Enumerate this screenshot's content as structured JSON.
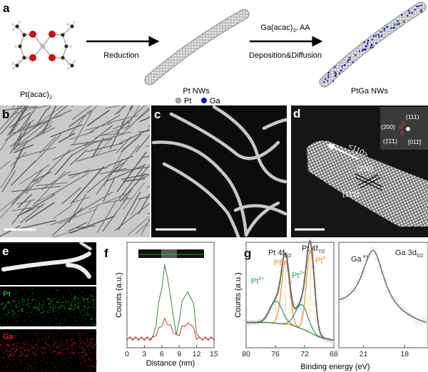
{
  "panel_labels": {
    "a": "a",
    "b": "b",
    "c": "c",
    "d": "d",
    "e": "e",
    "f": "f",
    "g": "g"
  },
  "scheme": {
    "precursor_label": "Pt(acac)",
    "precursor_sub": "2",
    "step1_label": "Reduction",
    "intermediate_label": "Pt NWs",
    "step2_top_label": "Ga(acac)",
    "step2_top_sub": "3",
    "step2_top_suffix": ", AA",
    "step2_bottom_label": "Deposition&Diffusion",
    "product_label": "PtGa NWs",
    "legend": [
      {
        "label": "Pt",
        "color": "#a8a8a8"
      },
      {
        "label": "Ga",
        "color": "#1010c8"
      }
    ]
  },
  "panel_d": {
    "direction_label": "<110>",
    "plane1_label": "(200)",
    "plane2_label": "(1̄1̄1)",
    "fft_labels": {
      "a": "(111)",
      "b": "(200)",
      "c": "(1̄1̄1)",
      "zone": "[011̄]"
    }
  },
  "panel_e": {
    "pt_label": "Pt",
    "ga_label": "Ga",
    "pt_color": "#2aa02a",
    "ga_color": "#e02020"
  },
  "chart_data": [
    {
      "id": "f",
      "type": "line",
      "xlabel": "Distance (nm)",
      "ylabel": "Counts (a.u.)",
      "xlim": [
        0,
        15
      ],
      "ylim": [
        -0.05,
        1.1
      ],
      "xticks": [
        0,
        3,
        6,
        9,
        12,
        15
      ],
      "x": [
        0,
        0.5,
        1,
        1.5,
        2,
        2.5,
        3,
        3.5,
        4,
        4.5,
        5,
        5.5,
        6,
        6.5,
        7,
        7.5,
        8,
        8.5,
        9,
        9.5,
        10,
        10.5,
        11,
        11.5,
        12,
        12.5,
        13,
        13.5,
        14,
        14.5,
        15
      ],
      "series": [
        {
          "color": "#3a8a3a",
          "values": [
            0.05,
            0.05,
            0.06,
            0.05,
            0.05,
            0.05,
            0.05,
            0.05,
            0.05,
            0.07,
            0.2,
            0.45,
            0.6,
            0.85,
            0.72,
            0.5,
            0.3,
            0.08,
            0.25,
            0.45,
            0.52,
            0.55,
            0.5,
            0.42,
            0.12,
            0.05,
            0.05,
            0.05,
            0.05,
            0.05,
            0.05
          ]
        },
        {
          "color": "#e03030",
          "values": [
            0.05,
            0.05,
            0.05,
            0.05,
            0.05,
            0.05,
            0.05,
            0.05,
            0.05,
            0.05,
            0.1,
            0.15,
            0.2,
            0.25,
            0.22,
            0.18,
            0.13,
            0.08,
            0.1,
            0.17,
            0.2,
            0.2,
            0.22,
            0.15,
            0.06,
            0.05,
            0.05,
            0.05,
            0.05,
            0.05,
            0.05
          ]
        }
      ]
    },
    {
      "id": "g-left",
      "type": "line",
      "xlabel": "Binding energy (eV)",
      "ylabel": "Counts (a.u.)",
      "xlim": [
        80,
        68
      ],
      "ylim": [
        0,
        1.0
      ],
      "xticks": [
        80,
        76,
        72,
        68
      ],
      "background": {
        "x": [
          80,
          77,
          74,
          72,
          70,
          68
        ],
        "y": [
          0.24,
          0.24,
          0.22,
          0.17,
          0.1,
          0.07
        ],
        "color": "#8a7a40"
      },
      "components": [
        {
          "label": "Pt⁰",
          "center": 74.6,
          "height": 0.6,
          "fwhm": 1.3,
          "color": "#f0901a"
        },
        {
          "label": "Pt⁰",
          "center": 71.2,
          "height": 0.78,
          "fwhm": 1.3,
          "color": "#f0901a"
        },
        {
          "label": "Pt²⁺",
          "center": 75.9,
          "height": 0.21,
          "fwhm": 2.0,
          "color": "#2a9a4a"
        },
        {
          "label": "Pt²⁺",
          "center": 72.4,
          "height": 0.23,
          "fwhm": 2.0,
          "color": "#2a9a4a"
        }
      ],
      "envelope_color": "#666666",
      "annotations": {
        "peak1": "Pt 4f",
        "peak1_sub": "5/2",
        "peak2": "Pt 4f",
        "peak2_sub": "7/2",
        "pt0": "Pt",
        "pt0_sup": "0",
        "pt2": "Pt",
        "pt2_sup": "2+"
      }
    },
    {
      "id": "g-right",
      "type": "line",
      "xlabel": "",
      "xlim": [
        22.8,
        16.3
      ],
      "ylim": [
        0,
        1.0
      ],
      "xticks": [
        21,
        18
      ],
      "components": [
        {
          "label": "Ga",
          "label_sup": "x+",
          "center": 20.3,
          "height": 0.62,
          "fwhm": 2.0,
          "color": "#777777"
        }
      ],
      "baseline": [
        0.37,
        0.2
      ],
      "title": "Ga 3d",
      "title_sub": "5/2"
    }
  ]
}
